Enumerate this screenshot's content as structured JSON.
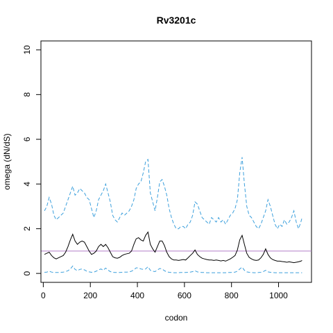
{
  "chart_data": {
    "type": "line",
    "title": "Rv3201c",
    "xlabel": "codon",
    "ylabel": "omega (dN/dS)",
    "xlim": [
      -10,
      1140
    ],
    "ylim": [
      -0.4,
      10.4
    ],
    "x_ticks": [
      0,
      200,
      400,
      600,
      800,
      1000
    ],
    "y_ticks": [
      0,
      2,
      4,
      6,
      8,
      10
    ],
    "reference_line": {
      "y": 1,
      "color": "#b07cc6"
    },
    "grid": false,
    "legend": "none",
    "series": [
      {
        "style": "dashed",
        "color": "#3b9fdc",
        "x": [
          5,
          15,
          25,
          35,
          45,
          55,
          65,
          75,
          85,
          95,
          105,
          115,
          125,
          135,
          145,
          155,
          165,
          175,
          185,
          195,
          205,
          215,
          225,
          235,
          245,
          255,
          265,
          275,
          285,
          295,
          305,
          315,
          325,
          335,
          345,
          355,
          365,
          375,
          385,
          395,
          405,
          415,
          425,
          435,
          445,
          455,
          465,
          475,
          485,
          495,
          505,
          515,
          525,
          535,
          545,
          555,
          565,
          575,
          585,
          595,
          605,
          615,
          625,
          635,
          645,
          655,
          665,
          675,
          685,
          695,
          705,
          715,
          725,
          735,
          745,
          755,
          765,
          775,
          785,
          795,
          805,
          815,
          825,
          835,
          845,
          855,
          865,
          875,
          885,
          895,
          905,
          915,
          925,
          935,
          945,
          955,
          965,
          975,
          985,
          995,
          1005,
          1015,
          1025,
          1035,
          1045,
          1055,
          1065,
          1075,
          1085,
          1095,
          1100
        ],
        "y": [
          2.8,
          3.0,
          3.4,
          3.1,
          2.6,
          2.4,
          2.5,
          2.6,
          2.7,
          3.0,
          3.3,
          3.6,
          3.9,
          3.5,
          3.6,
          3.8,
          3.7,
          3.6,
          3.4,
          3.3,
          2.9,
          2.5,
          2.8,
          3.3,
          3.5,
          3.7,
          4.0,
          3.6,
          3.2,
          2.6,
          2.4,
          2.3,
          2.5,
          2.7,
          2.6,
          2.7,
          2.8,
          3.0,
          3.3,
          3.8,
          4.0,
          4.1,
          4.5,
          5.0,
          5.1,
          3.6,
          3.2,
          2.8,
          3.4,
          4.1,
          4.2,
          3.9,
          3.5,
          2.9,
          2.5,
          2.2,
          2.0,
          2.0,
          2.1,
          2.1,
          2.0,
          2.2,
          2.3,
          2.6,
          3.2,
          3.1,
          2.8,
          2.5,
          2.4,
          2.3,
          2.2,
          2.5,
          2.4,
          2.3,
          2.5,
          2.3,
          2.4,
          2.2,
          2.4,
          2.6,
          2.7,
          2.9,
          3.3,
          4.5,
          5.2,
          4.0,
          3.0,
          2.6,
          2.5,
          2.3,
          2.1,
          2.0,
          2.2,
          2.5,
          2.8,
          3.3,
          3.0,
          2.6,
          2.2,
          2.0,
          2.2,
          2.1,
          2.4,
          2.2,
          2.3,
          2.5,
          2.8,
          2.3,
          2.0,
          2.3,
          2.5
        ]
      },
      {
        "style": "solid",
        "color": "#000000",
        "x": [
          5,
          15,
          25,
          35,
          45,
          55,
          65,
          75,
          85,
          95,
          105,
          115,
          125,
          135,
          145,
          155,
          165,
          175,
          185,
          195,
          205,
          215,
          225,
          235,
          245,
          255,
          265,
          275,
          285,
          295,
          305,
          315,
          325,
          335,
          345,
          355,
          365,
          375,
          385,
          395,
          405,
          415,
          425,
          435,
          445,
          455,
          465,
          475,
          485,
          495,
          505,
          515,
          525,
          535,
          545,
          555,
          565,
          575,
          585,
          595,
          605,
          615,
          625,
          635,
          645,
          655,
          665,
          675,
          685,
          695,
          705,
          715,
          725,
          735,
          745,
          755,
          765,
          775,
          785,
          795,
          805,
          815,
          825,
          835,
          845,
          855,
          865,
          875,
          885,
          895,
          905,
          915,
          925,
          935,
          945,
          955,
          965,
          975,
          985,
          995,
          1005,
          1015,
          1025,
          1035,
          1045,
          1055,
          1065,
          1075,
          1085,
          1095,
          1100
        ],
        "y": [
          0.85,
          0.9,
          0.95,
          0.8,
          0.7,
          0.65,
          0.7,
          0.75,
          0.8,
          0.95,
          1.2,
          1.5,
          1.75,
          1.45,
          1.3,
          1.4,
          1.45,
          1.4,
          1.2,
          1.0,
          0.85,
          0.9,
          1.0,
          1.2,
          1.3,
          1.2,
          1.3,
          1.15,
          0.95,
          0.75,
          0.7,
          0.68,
          0.72,
          0.8,
          0.85,
          0.88,
          0.9,
          1.0,
          1.3,
          1.55,
          1.6,
          1.5,
          1.45,
          1.7,
          1.85,
          1.3,
          1.1,
          0.95,
          1.2,
          1.45,
          1.45,
          1.25,
          0.95,
          0.75,
          0.65,
          0.6,
          0.6,
          0.58,
          0.6,
          0.62,
          0.6,
          0.7,
          0.8,
          0.9,
          1.05,
          0.85,
          0.75,
          0.68,
          0.65,
          0.62,
          0.6,
          0.6,
          0.58,
          0.6,
          0.58,
          0.56,
          0.58,
          0.55,
          0.6,
          0.65,
          0.72,
          0.8,
          1.05,
          1.5,
          1.7,
          1.3,
          0.9,
          0.72,
          0.65,
          0.6,
          0.58,
          0.6,
          0.7,
          0.85,
          1.1,
          0.85,
          0.7,
          0.62,
          0.58,
          0.55,
          0.55,
          0.53,
          0.52,
          0.5,
          0.52,
          0.5,
          0.48,
          0.5,
          0.52,
          0.55,
          0.58
        ]
      },
      {
        "style": "dashed",
        "color": "#3b9fdc",
        "x": [
          5,
          15,
          25,
          35,
          45,
          55,
          65,
          75,
          85,
          95,
          105,
          115,
          125,
          135,
          145,
          155,
          165,
          175,
          185,
          195,
          205,
          215,
          225,
          235,
          245,
          255,
          265,
          275,
          285,
          295,
          305,
          315,
          325,
          335,
          345,
          355,
          365,
          375,
          385,
          395,
          405,
          415,
          425,
          435,
          445,
          455,
          465,
          475,
          485,
          495,
          505,
          515,
          525,
          535,
          545,
          555,
          565,
          575,
          585,
          595,
          605,
          615,
          625,
          635,
          645,
          655,
          665,
          675,
          685,
          695,
          705,
          715,
          725,
          735,
          745,
          755,
          765,
          775,
          785,
          795,
          805,
          815,
          825,
          835,
          845,
          855,
          865,
          875,
          885,
          895,
          905,
          915,
          925,
          935,
          945,
          955,
          965,
          975,
          985,
          995,
          1005,
          1015,
          1025,
          1035,
          1045,
          1055,
          1065,
          1075,
          1085,
          1095,
          1100
        ],
        "y": [
          0.05,
          0.06,
          0.1,
          0.06,
          0.04,
          0.04,
          0.04,
          0.05,
          0.06,
          0.08,
          0.12,
          0.2,
          0.33,
          0.18,
          0.12,
          0.18,
          0.2,
          0.16,
          0.1,
          0.07,
          0.05,
          0.06,
          0.1,
          0.16,
          0.2,
          0.14,
          0.24,
          0.15,
          0.08,
          0.05,
          0.04,
          0.04,
          0.04,
          0.05,
          0.06,
          0.06,
          0.07,
          0.1,
          0.16,
          0.25,
          0.25,
          0.2,
          0.18,
          0.2,
          0.3,
          0.14,
          0.1,
          0.08,
          0.15,
          0.22,
          0.2,
          0.12,
          0.07,
          0.05,
          0.04,
          0.03,
          0.03,
          0.03,
          0.04,
          0.04,
          0.04,
          0.05,
          0.06,
          0.08,
          0.12,
          0.07,
          0.05,
          0.04,
          0.04,
          0.03,
          0.03,
          0.03,
          0.03,
          0.03,
          0.03,
          0.03,
          0.03,
          0.03,
          0.04,
          0.04,
          0.05,
          0.06,
          0.1,
          0.2,
          0.28,
          0.14,
          0.07,
          0.05,
          0.04,
          0.03,
          0.03,
          0.04,
          0.05,
          0.08,
          0.14,
          0.07,
          0.05,
          0.04,
          0.03,
          0.03,
          0.03,
          0.03,
          0.03,
          0.03,
          0.03,
          0.03,
          0.03,
          0.03,
          0.03,
          0.03,
          0.03
        ]
      }
    ]
  }
}
